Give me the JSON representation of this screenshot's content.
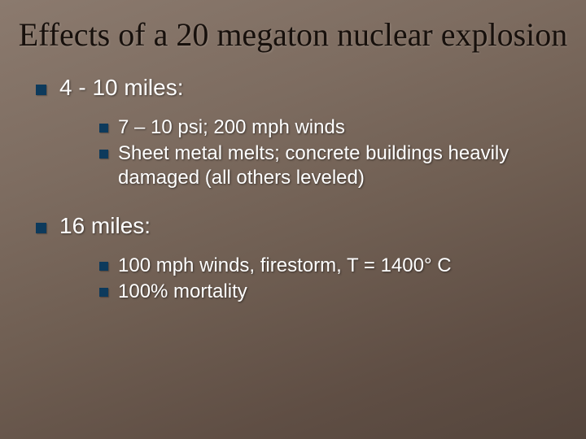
{
  "title": "Effects of a 20 megaton nuclear explosion",
  "bullet_color": "#0d3a5c",
  "title_color": "#17100c",
  "text_color": "#ffffff",
  "background_gradient": [
    "#8b7a6e",
    "#7d6c60",
    "#6f5e52",
    "#5f4e44",
    "#54453c"
  ],
  "title_font_family": "Georgia, serif",
  "body_font_family": "Verdana, sans-serif",
  "title_fontsize": 40,
  "level1_fontsize": 28,
  "level2_fontsize": 24,
  "sections": [
    {
      "heading": "4 - 10 miles:",
      "items": [
        "7 – 10 psi; 200 mph winds",
        "Sheet metal melts; concrete buildings heavily damaged (all others leveled)"
      ]
    },
    {
      "heading": "16 miles:",
      "items": [
        "100 mph winds, firestorm, T = 1400° C",
        "100% mortality"
      ]
    }
  ]
}
